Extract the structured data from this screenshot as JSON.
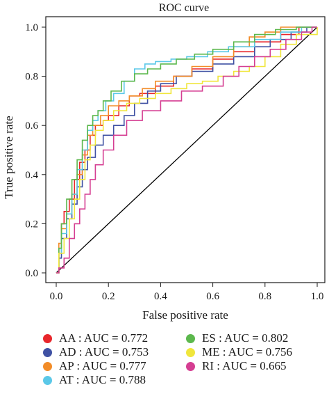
{
  "chart_data": {
    "type": "line",
    "title": "ROC curve",
    "xlabel": "False positive rate",
    "ylabel": "True positive rate",
    "xlim": [
      0,
      1
    ],
    "ylim": [
      0,
      1
    ],
    "x_ticks": [
      "0.0",
      "0.2",
      "0.4",
      "0.6",
      "0.8",
      "1.0"
    ],
    "y_ticks": [
      "0.0",
      "0.2",
      "0.4",
      "0.6",
      "0.8",
      "1.0"
    ],
    "grid": false,
    "legend_position": "bottom",
    "reference_line": {
      "x": [
        0,
        1
      ],
      "y": [
        0,
        1
      ],
      "color": "#000000"
    },
    "series": [
      {
        "name": "AA : AUC = 0.772",
        "color": "#e8262b",
        "x": [
          0,
          0.01,
          0.02,
          0.03,
          0.05,
          0.07,
          0.09,
          0.11,
          0.13,
          0.15,
          0.18,
          0.2,
          0.24,
          0.28,
          0.32,
          0.38,
          0.45,
          0.52,
          0.6,
          0.68,
          0.76,
          0.86,
          0.93,
          1.0
        ],
        "y": [
          0,
          0.1,
          0.2,
          0.25,
          0.3,
          0.38,
          0.45,
          0.5,
          0.56,
          0.6,
          0.62,
          0.64,
          0.68,
          0.72,
          0.73,
          0.76,
          0.8,
          0.83,
          0.87,
          0.9,
          0.94,
          0.97,
          1.0,
          1.0
        ]
      },
      {
        "name": "AD : AUC = 0.753",
        "color": "#3f51a3",
        "x": [
          0,
          0.01,
          0.02,
          0.04,
          0.06,
          0.08,
          0.1,
          0.12,
          0.15,
          0.18,
          0.22,
          0.26,
          0.3,
          0.35,
          0.4,
          0.46,
          0.52,
          0.6,
          0.68,
          0.76,
          0.82,
          0.9,
          0.96,
          1.0
        ],
        "y": [
          0,
          0.06,
          0.14,
          0.22,
          0.28,
          0.35,
          0.42,
          0.47,
          0.52,
          0.56,
          0.6,
          0.64,
          0.69,
          0.74,
          0.77,
          0.8,
          0.82,
          0.85,
          0.88,
          0.92,
          0.95,
          0.98,
          1.0,
          1.0
        ]
      },
      {
        "name": "AP : AUC = 0.777",
        "color": "#f28c28",
        "x": [
          0,
          0.01,
          0.02,
          0.04,
          0.06,
          0.08,
          0.1,
          0.12,
          0.14,
          0.17,
          0.2,
          0.24,
          0.28,
          0.33,
          0.38,
          0.45,
          0.52,
          0.6,
          0.68,
          0.74,
          0.8,
          0.86,
          0.92,
          1.0
        ],
        "y": [
          0,
          0.12,
          0.18,
          0.24,
          0.32,
          0.4,
          0.48,
          0.56,
          0.6,
          0.64,
          0.68,
          0.7,
          0.72,
          0.75,
          0.78,
          0.8,
          0.84,
          0.88,
          0.92,
          0.96,
          0.98,
          1.0,
          1.0,
          1.0
        ]
      },
      {
        "name": "AT : AUC = 0.788",
        "color": "#5bc8e8",
        "x": [
          0,
          0.01,
          0.02,
          0.04,
          0.06,
          0.08,
          0.1,
          0.12,
          0.14,
          0.16,
          0.19,
          0.22,
          0.26,
          0.3,
          0.34,
          0.38,
          0.44,
          0.5,
          0.58,
          0.66,
          0.76,
          0.86,
          0.94,
          1.0
        ],
        "y": [
          0,
          0.08,
          0.16,
          0.24,
          0.32,
          0.42,
          0.5,
          0.58,
          0.62,
          0.66,
          0.7,
          0.73,
          0.78,
          0.83,
          0.85,
          0.86,
          0.87,
          0.88,
          0.9,
          0.92,
          0.95,
          0.98,
          1.0,
          1.0
        ]
      },
      {
        "name": "ES : AUC = 0.802",
        "color": "#5cb84d",
        "x": [
          0,
          0.01,
          0.02,
          0.04,
          0.06,
          0.08,
          0.1,
          0.12,
          0.14,
          0.16,
          0.18,
          0.21,
          0.25,
          0.3,
          0.35,
          0.4,
          0.46,
          0.53,
          0.6,
          0.68,
          0.76,
          0.84,
          0.92,
          1.0
        ],
        "y": [
          0,
          0.1,
          0.2,
          0.3,
          0.38,
          0.46,
          0.54,
          0.6,
          0.64,
          0.66,
          0.7,
          0.74,
          0.78,
          0.81,
          0.83,
          0.85,
          0.87,
          0.89,
          0.91,
          0.94,
          0.97,
          0.99,
          1.0,
          1.0
        ]
      },
      {
        "name": "ME : AUC = 0.756",
        "color": "#f0e63c",
        "x": [
          0,
          0.01,
          0.03,
          0.05,
          0.07,
          0.09,
          0.11,
          0.13,
          0.15,
          0.18,
          0.22,
          0.27,
          0.32,
          0.38,
          0.44,
          0.5,
          0.56,
          0.62,
          0.68,
          0.74,
          0.8,
          0.86,
          0.92,
          1.0
        ],
        "y": [
          0,
          0.08,
          0.14,
          0.22,
          0.3,
          0.38,
          0.46,
          0.52,
          0.58,
          0.62,
          0.66,
          0.69,
          0.71,
          0.73,
          0.75,
          0.77,
          0.78,
          0.8,
          0.82,
          0.84,
          0.88,
          0.93,
          0.97,
          1.0
        ]
      },
      {
        "name": "RI : AUC = 0.665",
        "color": "#d53e92",
        "x": [
          0,
          0.01,
          0.03,
          0.05,
          0.07,
          0.09,
          0.11,
          0.13,
          0.15,
          0.18,
          0.22,
          0.27,
          0.33,
          0.4,
          0.48,
          0.56,
          0.64,
          0.7,
          0.76,
          0.82,
          0.88,
          0.94,
          0.98,
          1.0
        ],
        "y": [
          0,
          0.02,
          0.06,
          0.14,
          0.2,
          0.26,
          0.32,
          0.38,
          0.44,
          0.5,
          0.56,
          0.62,
          0.66,
          0.7,
          0.74,
          0.76,
          0.8,
          0.84,
          0.88,
          0.91,
          0.95,
          0.98,
          1.0,
          1.0
        ]
      }
    ]
  }
}
